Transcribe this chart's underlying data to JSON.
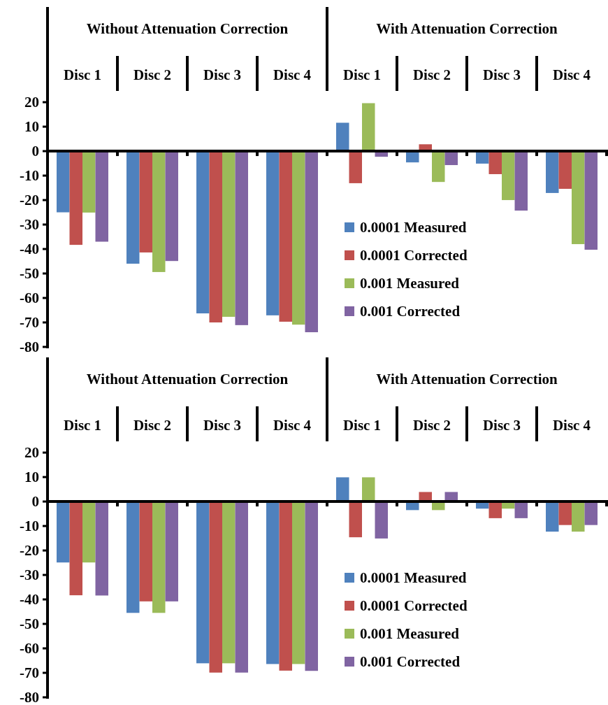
{
  "chart_data": [
    {
      "type": "bar",
      "categories": [
        "Disc 1",
        "Disc 2",
        "Disc 3",
        "Disc 4",
        "Disc 1",
        "Disc 2",
        "Disc 3",
        "Disc 4"
      ],
      "annotations": [
        "Without Attenuation Correction",
        "With Attenuation Correction"
      ],
      "ylim": [
        -80,
        58.9
      ],
      "yticks": [
        -80,
        -70,
        -60,
        -50,
        -40,
        -30,
        -20,
        -10,
        0,
        10,
        20
      ],
      "legend": "bottom",
      "series": [
        {
          "name": "0.0001 Measured",
          "color": "#4f81bd",
          "values": [
            -25,
            -46,
            -66.3,
            -67.1,
            11.6,
            -4.6,
            -5.1,
            -17.1
          ]
        },
        {
          "name": "0.0001 Corrected",
          "color": "#c0504d",
          "values": [
            -38.3,
            -41.4,
            -70,
            -69.7,
            -13.1,
            2.8,
            -9.4,
            -15.4
          ]
        },
        {
          "name": "0.001 Measured",
          "color": "#9bbb59",
          "values": [
            -25.1,
            -49.4,
            -67.7,
            -70.9,
            19.6,
            -12.6,
            -20,
            -38
          ]
        },
        {
          "name": "0.001 Corrected",
          "color": "#8064a2",
          "values": [
            -37,
            -44.9,
            -71.1,
            -74,
            -2.3,
            -5.7,
            -24.3,
            -40.3
          ]
        }
      ]
    },
    {
      "type": "bar",
      "categories": [
        "Disc 1",
        "Disc 2",
        "Disc 3",
        "Disc 4",
        "Disc 1",
        "Disc 2",
        "Disc 3",
        "Disc 4"
      ],
      "annotations": [
        "Without Attenuation Correction",
        "With Attenuation Correction"
      ],
      "ylim": [
        -80,
        58.9
      ],
      "yticks": [
        -80,
        -70,
        -60,
        -50,
        -40,
        -30,
        -20,
        -10,
        0,
        10,
        20
      ],
      "legend": "bottom",
      "series": [
        {
          "name": "0.0001 Measured",
          "color": "#4f81bd",
          "values": [
            -24.9,
            -45.5,
            -66.1,
            -66.4,
            9.9,
            -3.5,
            -2.9,
            -12.3
          ]
        },
        {
          "name": "0.0001 Corrected",
          "color": "#c0504d",
          "values": [
            -38.3,
            -40.8,
            -69.9,
            -69.1,
            -14.6,
            3.9,
            -6.8,
            -9.6
          ]
        },
        {
          "name": "0.001 Measured",
          "color": "#9bbb59",
          "values": [
            -24.9,
            -45.5,
            -66.1,
            -66.4,
            9.9,
            -3.5,
            -2.9,
            -12.3
          ]
        },
        {
          "name": "0.001 Corrected",
          "color": "#8064a2",
          "values": [
            -38.4,
            -40.8,
            -69.9,
            -69.2,
            -15.1,
            3.9,
            -6.8,
            -9.6
          ]
        }
      ]
    }
  ]
}
